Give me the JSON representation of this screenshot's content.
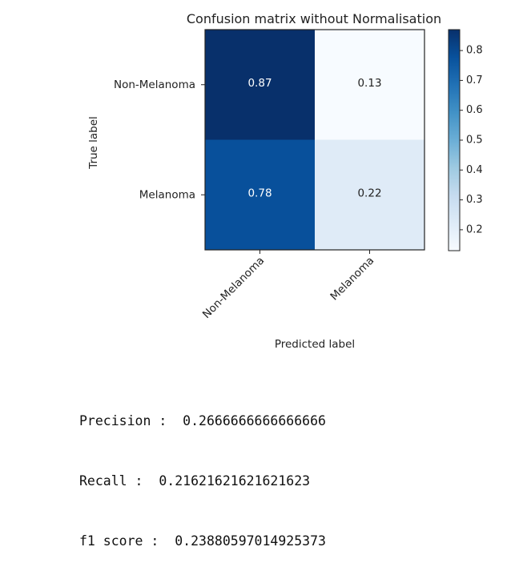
{
  "chart_data": {
    "type": "heatmap",
    "title": "Confusion matrix without Normalisation",
    "xlabel": "Predicted label",
    "ylabel": "True label",
    "x_categories": [
      "Non-Melanoma",
      "Melanoma"
    ],
    "y_categories": [
      "Non-Melanoma",
      "Melanoma"
    ],
    "values": [
      [
        0.87,
        0.13
      ],
      [
        0.78,
        0.22
      ]
    ],
    "value_labels": [
      [
        "0.87",
        "0.13"
      ],
      [
        "0.78",
        "0.22"
      ]
    ],
    "colormap": "Blues",
    "colorbar": {
      "range": [
        0.13,
        0.87
      ],
      "ticks": [
        0.2,
        0.3,
        0.4,
        0.5,
        0.6,
        0.7,
        0.8
      ],
      "tick_labels": [
        "0.2",
        "0.3",
        "0.4",
        "0.5",
        "0.6",
        "0.7",
        "0.8"
      ]
    },
    "grid": false
  },
  "metrics": {
    "precision_label": "Precision :",
    "precision_value": "0.2666666666666666",
    "recall_label": "Recall :",
    "recall_value": "0.21621621621621623",
    "f1_label": "f1 score :",
    "f1_value": "0.23880597014925373"
  }
}
